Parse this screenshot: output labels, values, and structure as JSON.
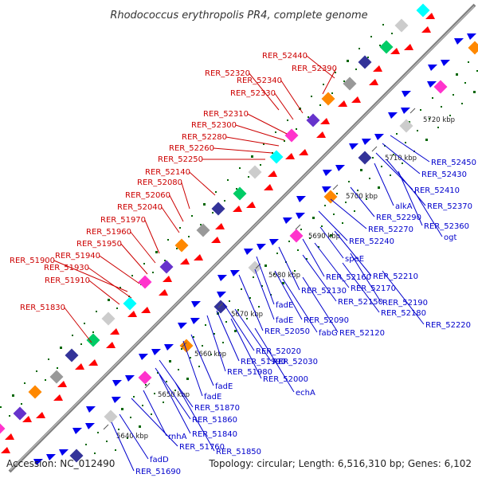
{
  "title": "Rhodococcus erythropolis PR4, complete genome",
  "accession": "Accession: NC_012490",
  "topology": "Topology: circular; Length: 6,516,310 bp; Genes: 6,102",
  "colors": {
    "forward_label": "#cc0000",
    "reverse_label": "#0000cc",
    "forward_gene": "#ff0000",
    "reverse_gene": "#0000ee",
    "backbone": "#808080",
    "dots": "#006600"
  },
  "ticks": [
    "5640 kbp",
    "5650 kbp",
    "5660 kbp",
    "5670 kbp",
    "5680 kbp",
    "5690 kbp",
    "5700 kbp",
    "5710 kbp",
    "5720 kbp"
  ],
  "forward_genes": [
    "RER_52440",
    "RER_52390",
    "RER_52320",
    "RER_52340",
    "RER_52330",
    "RER_52310",
    "RER_52300",
    "RER_52280",
    "RER_52260",
    "RER_52250",
    "RER_52140",
    "RER_52080",
    "RER_52060",
    "RER_52040",
    "RER_51970",
    "RER_51960",
    "RER_51950",
    "RER_51900",
    "RER_51940",
    "RER_51930",
    "RER_51910",
    "RER_51830"
  ],
  "reverse_genes": [
    "RER_52450",
    "RER_52430",
    "RER_52410",
    "alkA",
    "RER_52370",
    "RER_52290",
    "RER_52360",
    "RER_52270",
    "ogt",
    "RER_52240",
    "speE",
    "RER_52210",
    "RER_52160",
    "RER_52170",
    "RER_52130",
    "RER_52150",
    "RER_52190",
    "fadE",
    "RER_52180",
    "fadE",
    "RER_52090",
    "RER_52220",
    "RER_52050",
    "fabG",
    "RER_52120",
    "RER_52020",
    "RER_51990",
    "RER_52030",
    "RER_51980",
    "RER_52000",
    "echA",
    "fadE",
    "fadE",
    "RER_51870",
    "RER_51860",
    "rnhA",
    "RER_51840",
    "RER_51760",
    "RER_51850",
    "fadD",
    "RER_51690"
  ]
}
